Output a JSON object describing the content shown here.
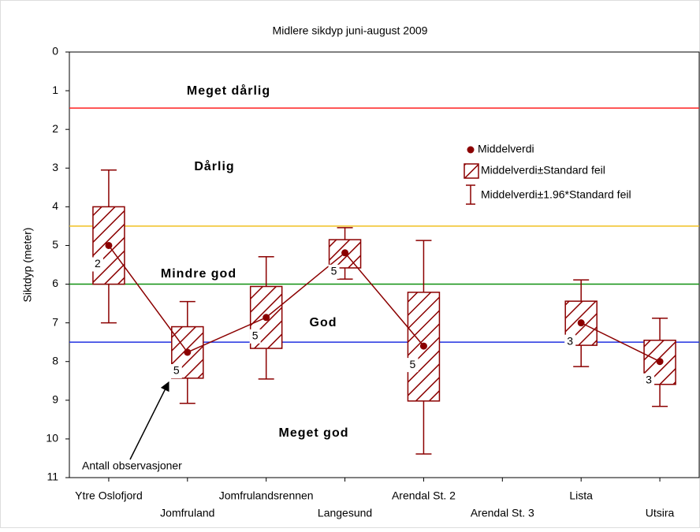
{
  "chart_data": {
    "type": "box",
    "title": "Midlere sikdyp juni-august 2009",
    "y_label": "Siktdyp (meter)",
    "categories": [
      "Ytre Oslofjord",
      "Jomfruland",
      "Jomfrulandsrennen",
      "Langesund",
      "Arendal St. 2",
      "Arendal St. 3",
      "Lista",
      "Utsira"
    ],
    "mean": [
      5.0,
      7.76,
      6.86,
      5.19,
      7.6,
      null,
      7.0,
      8.0
    ],
    "box_low": [
      4.0,
      7.1,
      6.06,
      4.85,
      6.21,
      null,
      6.44,
      7.45
    ],
    "box_high": [
      6.0,
      8.43,
      7.66,
      5.58,
      9.02,
      null,
      7.58,
      8.59
    ],
    "whisker_low": [
      3.05,
      6.45,
      5.29,
      4.54,
      4.87,
      null,
      5.89,
      6.88
    ],
    "whisker_high": [
      7.0,
      9.08,
      8.45,
      5.87,
      10.39,
      null,
      8.13,
      9.16
    ],
    "n": [
      2,
      5,
      5,
      5,
      5,
      null,
      3,
      3
    ],
    "color": "#8b0000",
    "ylim": [
      0,
      11
    ],
    "yticks": [
      0,
      1,
      2,
      3,
      4,
      5,
      6,
      7,
      8,
      9,
      10,
      11
    ],
    "y_inverted": true,
    "thresholds": [
      {
        "value": 1.45,
        "color": "#ff2020"
      },
      {
        "value": 4.5,
        "color": "#f0c020"
      },
      {
        "value": 6.0,
        "color": "#109010"
      },
      {
        "value": 7.5,
        "color": "#2030e0"
      }
    ],
    "zones": [
      "Meget dårlig",
      "Dårlig",
      "Mindre god",
      "God",
      "Meget god"
    ],
    "legend": [
      "Middelverdi",
      "Middelverdi±Standard feil",
      "Middelverdi±1.96*Standard feil"
    ],
    "annotation": "Antall observasjoner"
  }
}
